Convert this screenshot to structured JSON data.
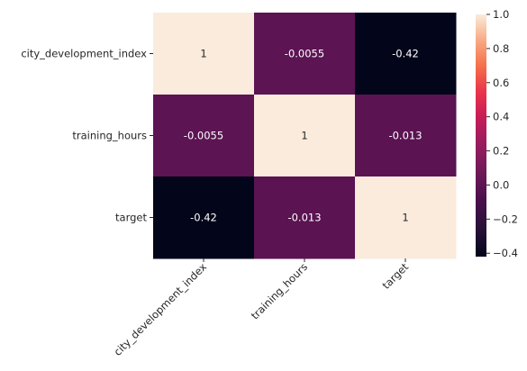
{
  "chart_data": {
    "type": "heatmap",
    "title": "",
    "xlabel": "",
    "ylabel": "",
    "x_categories": [
      "city_development_index",
      "training_hours",
      "target"
    ],
    "y_categories": [
      "city_development_index",
      "training_hours",
      "target"
    ],
    "values": [
      [
        1,
        -0.0055,
        -0.42
      ],
      [
        -0.0055,
        1,
        -0.013
      ],
      [
        -0.42,
        -0.013,
        1
      ]
    ],
    "annotations": [
      [
        "1",
        "-0.0055",
        "-0.42"
      ],
      [
        "-0.0055",
        "1",
        "-0.013"
      ],
      [
        "-0.42",
        "-0.013",
        "1"
      ]
    ],
    "colormap": "rocket",
    "vmin": -0.42,
    "vmax": 1.0,
    "colorbar": {
      "ticks": [
        1.0,
        0.8,
        0.6,
        0.4,
        0.2,
        0.0,
        -0.2,
        -0.4
      ],
      "tick_labels": [
        "1.0",
        "0.8",
        "0.6",
        "0.4",
        "0.2",
        "0.0",
        "−0.2",
        "−0.4"
      ],
      "location": "right"
    },
    "grid": false
  }
}
